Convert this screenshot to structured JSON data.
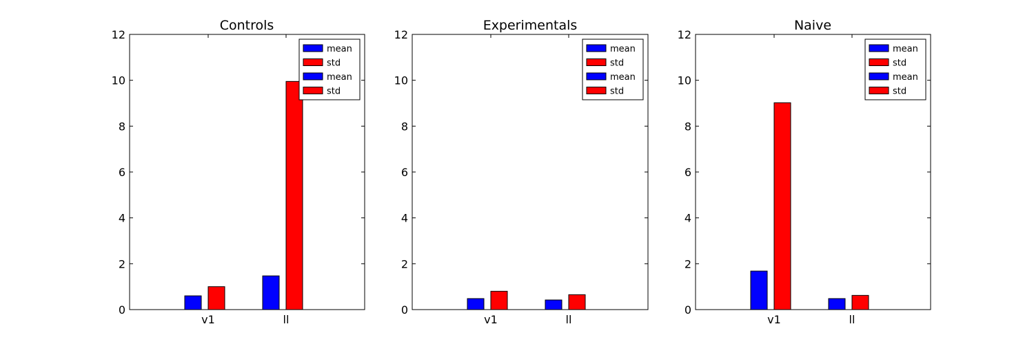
{
  "chart_data": [
    {
      "type": "bar",
      "title": "Controls",
      "categories": [
        "v1",
        "ll"
      ],
      "series": [
        {
          "name": "mean",
          "color": "#0000ff",
          "values": [
            0.6,
            1.47
          ]
        },
        {
          "name": "std",
          "color": "#ff0000",
          "values": [
            1.0,
            9.95
          ]
        }
      ],
      "legend_entries": [
        "mean",
        "std",
        "mean",
        "std"
      ],
      "legend_colors": [
        "#0000ff",
        "#ff0000",
        "#0000ff",
        "#ff0000"
      ],
      "legend_position": "top-right",
      "ylim": [
        0,
        12
      ],
      "yticks": [
        0,
        2,
        4,
        6,
        8,
        10,
        12
      ],
      "grid": false
    },
    {
      "type": "bar",
      "title": "Experimentals",
      "categories": [
        "v1",
        "ll"
      ],
      "series": [
        {
          "name": "mean",
          "color": "#0000ff",
          "values": [
            0.48,
            0.42
          ]
        },
        {
          "name": "std",
          "color": "#ff0000",
          "values": [
            0.8,
            0.65
          ]
        }
      ],
      "legend_entries": [
        "mean",
        "std",
        "mean",
        "std"
      ],
      "legend_colors": [
        "#0000ff",
        "#ff0000",
        "#0000ff",
        "#ff0000"
      ],
      "legend_position": "top-right",
      "ylim": [
        0,
        12
      ],
      "yticks": [
        0,
        2,
        4,
        6,
        8,
        10,
        12
      ],
      "grid": false
    },
    {
      "type": "bar",
      "title": "Naive",
      "categories": [
        "v1",
        "ll"
      ],
      "series": [
        {
          "name": "mean",
          "color": "#0000ff",
          "values": [
            1.68,
            0.48
          ]
        },
        {
          "name": "std",
          "color": "#ff0000",
          "values": [
            9.02,
            0.62
          ]
        }
      ],
      "legend_entries": [
        "mean",
        "std",
        "mean",
        "std"
      ],
      "legend_colors": [
        "#0000ff",
        "#ff0000",
        "#0000ff",
        "#ff0000"
      ],
      "legend_position": "top-right",
      "ylim": [
        0,
        12
      ],
      "yticks": [
        0,
        2,
        4,
        6,
        8,
        10,
        12
      ],
      "grid": false
    }
  ]
}
